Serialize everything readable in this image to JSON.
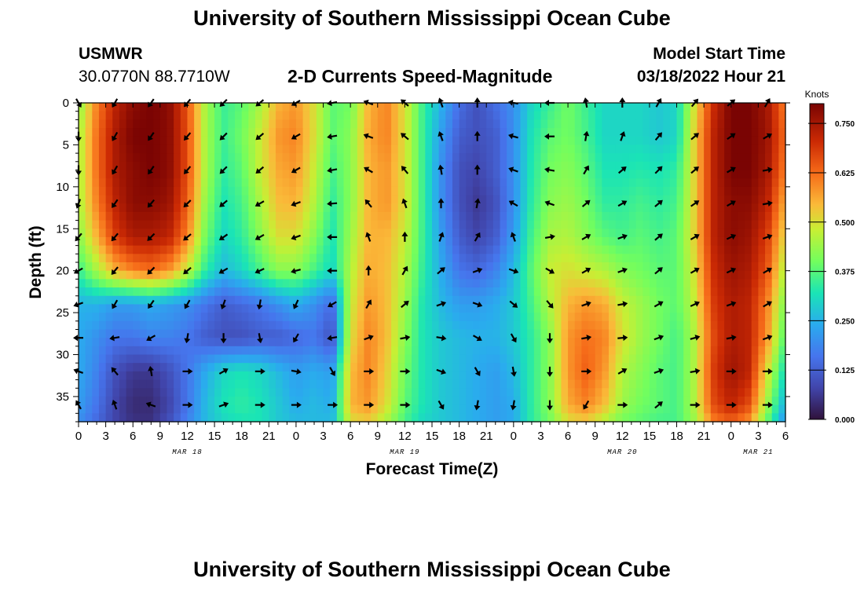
{
  "header": {
    "main_title": "University of Southern Mississippi Ocean Cube",
    "station_id": "USMWR",
    "coordinates": "30.0770N  88.7710W",
    "plot_title": "2-D Currents Speed-Magnitude",
    "model_start_label": "Model Start Time",
    "model_start_value": "03/18/2022 Hour 21"
  },
  "footer": {
    "main_title": "University of Southern Mississippi Ocean Cube"
  },
  "chart_data": {
    "type": "heatmap",
    "title": "2-D Currents Speed-Magnitude",
    "xlabel": "Forecast Time(Z)",
    "ylabel": "Depth (ft)",
    "x_ticks": [
      "0",
      "3",
      "6",
      "9",
      "12",
      "15",
      "18",
      "21",
      "0",
      "3",
      "6",
      "9",
      "12",
      "15",
      "18",
      "21",
      "0",
      "3",
      "6",
      "9",
      "12",
      "15",
      "18",
      "21",
      "0",
      "3",
      "6"
    ],
    "x_range_hours": [
      0,
      78
    ],
    "date_labels": [
      {
        "label": "MAR 18",
        "hour": 12
      },
      {
        "label": "MAR 19",
        "hour": 36
      },
      {
        "label": "MAR 20",
        "hour": 60
      },
      {
        "label": "MAR 21",
        "hour": 75
      }
    ],
    "y_ticks": [
      0,
      5,
      10,
      15,
      20,
      25,
      30,
      35
    ],
    "y_range": [
      0,
      38
    ],
    "colorbar": {
      "label": "Knots",
      "range": [
        0.0,
        0.8
      ],
      "ticks": [
        "0.000",
        "0.125",
        "0.250",
        "0.375",
        "0.500",
        "0.625",
        "0.750"
      ],
      "tick_values": [
        0.0,
        0.125,
        0.25,
        0.375,
        0.5,
        0.625,
        0.75
      ]
    },
    "speed_knots": {
      "hours": [
        0,
        2,
        4,
        6,
        8,
        10,
        12,
        14,
        16,
        18,
        20,
        22,
        24,
        26,
        28,
        30,
        32,
        34,
        36,
        38,
        40,
        42,
        44,
        46,
        48,
        50,
        52,
        54,
        56,
        58,
        60,
        62,
        64,
        66,
        68,
        70,
        72,
        74,
        76,
        78
      ],
      "depths_ft": [
        0,
        4,
        8,
        12,
        16,
        20,
        24,
        28,
        32,
        36,
        38
      ],
      "values": [
        [
          0.42,
          0.6,
          0.72,
          0.78,
          0.8,
          0.78,
          0.65,
          0.45,
          0.35,
          0.38,
          0.45,
          0.55,
          0.58,
          0.5,
          0.38,
          0.4,
          0.55,
          0.6,
          0.5,
          0.35,
          0.25,
          0.15,
          0.1,
          0.15,
          0.2,
          0.3,
          0.35,
          0.4,
          0.35,
          0.3,
          0.3,
          0.3,
          0.28,
          0.3,
          0.5,
          0.7,
          0.8,
          0.8,
          0.75,
          0.6
        ],
        [
          0.45,
          0.62,
          0.74,
          0.8,
          0.8,
          0.78,
          0.66,
          0.45,
          0.35,
          0.4,
          0.48,
          0.58,
          0.6,
          0.5,
          0.38,
          0.42,
          0.56,
          0.6,
          0.5,
          0.35,
          0.22,
          0.12,
          0.1,
          0.12,
          0.2,
          0.32,
          0.38,
          0.4,
          0.36,
          0.3,
          0.3,
          0.3,
          0.28,
          0.3,
          0.52,
          0.72,
          0.8,
          0.8,
          0.76,
          0.62
        ],
        [
          0.45,
          0.62,
          0.74,
          0.78,
          0.8,
          0.78,
          0.66,
          0.45,
          0.34,
          0.38,
          0.48,
          0.56,
          0.58,
          0.48,
          0.36,
          0.42,
          0.55,
          0.58,
          0.5,
          0.35,
          0.2,
          0.1,
          0.08,
          0.12,
          0.2,
          0.33,
          0.4,
          0.42,
          0.38,
          0.32,
          0.32,
          0.33,
          0.32,
          0.34,
          0.52,
          0.72,
          0.8,
          0.8,
          0.75,
          0.6
        ],
        [
          0.45,
          0.6,
          0.72,
          0.78,
          0.78,
          0.76,
          0.64,
          0.43,
          0.32,
          0.36,
          0.45,
          0.54,
          0.55,
          0.46,
          0.34,
          0.42,
          0.55,
          0.58,
          0.5,
          0.35,
          0.2,
          0.1,
          0.06,
          0.1,
          0.2,
          0.34,
          0.42,
          0.44,
          0.4,
          0.34,
          0.34,
          0.36,
          0.34,
          0.36,
          0.52,
          0.72,
          0.78,
          0.78,
          0.72,
          0.55
        ],
        [
          0.42,
          0.55,
          0.68,
          0.74,
          0.74,
          0.72,
          0.6,
          0.4,
          0.3,
          0.34,
          0.42,
          0.5,
          0.5,
          0.42,
          0.32,
          0.44,
          0.55,
          0.55,
          0.48,
          0.35,
          0.22,
          0.12,
          0.08,
          0.12,
          0.22,
          0.36,
          0.45,
          0.46,
          0.42,
          0.38,
          0.36,
          0.38,
          0.36,
          0.38,
          0.52,
          0.72,
          0.78,
          0.76,
          0.68,
          0.5
        ],
        [
          0.35,
          0.45,
          0.55,
          0.6,
          0.62,
          0.58,
          0.48,
          0.34,
          0.26,
          0.3,
          0.36,
          0.42,
          0.42,
          0.36,
          0.3,
          0.46,
          0.56,
          0.54,
          0.46,
          0.34,
          0.24,
          0.16,
          0.14,
          0.18,
          0.26,
          0.38,
          0.48,
          0.5,
          0.48,
          0.46,
          0.42,
          0.4,
          0.38,
          0.38,
          0.5,
          0.7,
          0.76,
          0.74,
          0.65,
          0.45
        ],
        [
          0.25,
          0.25,
          0.22,
          0.22,
          0.24,
          0.22,
          0.2,
          0.16,
          0.12,
          0.14,
          0.16,
          0.2,
          0.24,
          0.2,
          0.14,
          0.48,
          0.58,
          0.54,
          0.44,
          0.32,
          0.26,
          0.22,
          0.22,
          0.24,
          0.28,
          0.36,
          0.46,
          0.55,
          0.58,
          0.56,
          0.48,
          0.44,
          0.4,
          0.38,
          0.48,
          0.68,
          0.74,
          0.72,
          0.6,
          0.4
        ],
        [
          0.24,
          0.2,
          0.16,
          0.16,
          0.18,
          0.18,
          0.16,
          0.12,
          0.1,
          0.1,
          0.12,
          0.12,
          0.14,
          0.16,
          0.1,
          0.5,
          0.6,
          0.54,
          0.42,
          0.32,
          0.28,
          0.26,
          0.25,
          0.25,
          0.28,
          0.34,
          0.42,
          0.58,
          0.62,
          0.6,
          0.5,
          0.44,
          0.4,
          0.36,
          0.46,
          0.66,
          0.74,
          0.72,
          0.58,
          0.36
        ],
        [
          0.24,
          0.18,
          0.1,
          0.06,
          0.06,
          0.1,
          0.16,
          0.24,
          0.3,
          0.32,
          0.3,
          0.26,
          0.22,
          0.24,
          0.22,
          0.54,
          0.6,
          0.52,
          0.4,
          0.32,
          0.28,
          0.26,
          0.24,
          0.22,
          0.26,
          0.34,
          0.42,
          0.58,
          0.64,
          0.58,
          0.46,
          0.42,
          0.38,
          0.36,
          0.46,
          0.68,
          0.76,
          0.72,
          0.5,
          0.3
        ],
        [
          0.22,
          0.16,
          0.08,
          0.04,
          0.04,
          0.08,
          0.16,
          0.26,
          0.32,
          0.34,
          0.32,
          0.28,
          0.24,
          0.26,
          0.24,
          0.55,
          0.58,
          0.5,
          0.38,
          0.32,
          0.28,
          0.26,
          0.24,
          0.22,
          0.24,
          0.34,
          0.42,
          0.56,
          0.6,
          0.54,
          0.44,
          0.4,
          0.38,
          0.36,
          0.46,
          0.66,
          0.72,
          0.66,
          0.44,
          0.24
        ],
        [
          0.2,
          0.14,
          0.08,
          0.05,
          0.05,
          0.1,
          0.18,
          0.26,
          0.3,
          0.32,
          0.32,
          0.28,
          0.26,
          0.26,
          0.26,
          0.5,
          0.52,
          0.45,
          0.36,
          0.3,
          0.28,
          0.26,
          0.24,
          0.22,
          0.24,
          0.34,
          0.4,
          0.5,
          0.52,
          0.46,
          0.4,
          0.38,
          0.36,
          0.36,
          0.44,
          0.6,
          0.64,
          0.58,
          0.38,
          0.2
        ]
      ]
    },
    "vectors": {
      "hours": [
        0,
        4,
        8,
        12,
        16,
        20,
        24,
        28,
        32,
        36,
        40,
        44,
        48,
        52,
        56,
        60,
        64,
        68,
        72,
        76
      ],
      "depths_ft": [
        0,
        4,
        8,
        12,
        16,
        20,
        24,
        28,
        32,
        36
      ],
      "direction_deg": [
        [
          60,
          120,
          125,
          130,
          135,
          140,
          150,
          170,
          200,
          220,
          250,
          270,
          190,
          180,
          260,
          270,
          300,
          310,
          320,
          300
        ],
        [
          90,
          120,
          125,
          130,
          135,
          140,
          150,
          170,
          200,
          220,
          250,
          270,
          195,
          180,
          280,
          290,
          310,
          320,
          325,
          330
        ],
        [
          90,
          120,
          125,
          130,
          135,
          140,
          150,
          170,
          210,
          230,
          260,
          270,
          200,
          190,
          300,
          320,
          315,
          320,
          330,
          350
        ],
        [
          110,
          125,
          130,
          135,
          140,
          150,
          160,
          175,
          230,
          250,
          270,
          280,
          210,
          200,
          320,
          330,
          320,
          325,
          330,
          350
        ],
        [
          130,
          130,
          135,
          140,
          145,
          150,
          160,
          180,
          250,
          270,
          290,
          300,
          250,
          350,
          330,
          340,
          320,
          330,
          335,
          340
        ],
        [
          150,
          130,
          135,
          140,
          150,
          155,
          165,
          180,
          270,
          300,
          320,
          340,
          20,
          30,
          330,
          340,
          320,
          330,
          335,
          330
        ],
        [
          160,
          120,
          125,
          120,
          110,
          100,
          115,
          150,
          300,
          320,
          340,
          20,
          40,
          50,
          340,
          350,
          330,
          335,
          340,
          330
        ],
        [
          180,
          170,
          150,
          100,
          90,
          80,
          120,
          170,
          340,
          350,
          10,
          30,
          60,
          90,
          350,
          355,
          340,
          345,
          350,
          340
        ],
        [
          200,
          230,
          260,
          0,
          330,
          0,
          10,
          60,
          0,
          0,
          20,
          60,
          80,
          90,
          0,
          330,
          340,
          350,
          0,
          0
        ],
        [
          240,
          250,
          200,
          0,
          340,
          0,
          0,
          0,
          0,
          0,
          60,
          100,
          100,
          90,
          120,
          0,
          320,
          0,
          0,
          0
        ]
      ]
    }
  }
}
